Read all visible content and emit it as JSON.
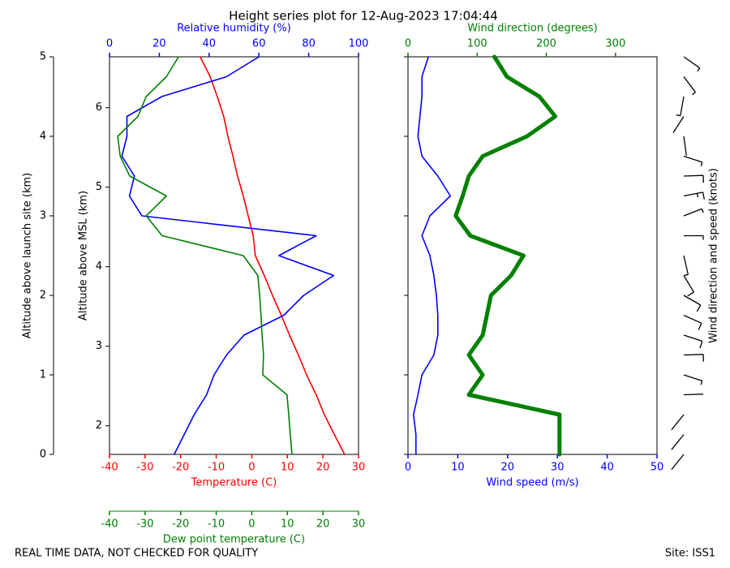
{
  "title": "Height series plot for 12-Aug-2023 17:04:44",
  "footer_left": "REAL TIME DATA, NOT CHECKED FOR QUALITY",
  "footer_right": "Site: ISS1",
  "chart_data": [
    {
      "type": "line",
      "ylabel": "Altitude above launch site (km)",
      "ylim": [
        0,
        5
      ],
      "yticks": [
        0,
        1,
        2,
        3,
        4,
        5
      ],
      "y2label": "Altitude above MSL (km)",
      "y2lim": [
        1.64,
        6.64
      ],
      "y2ticks": [
        2,
        3,
        4,
        5,
        6
      ],
      "y": [
        0,
        0.25,
        0.5,
        0.75,
        1,
        1.25,
        1.5,
        1.75,
        2,
        2.25,
        2.5,
        2.75,
        3,
        3.25,
        3.5,
        3.75,
        4,
        4.25,
        4.5,
        4.75,
        5
      ],
      "x_axes": [
        {
          "label": "Temperature (C)",
          "position": "bottom",
          "color": "#ff0000",
          "xlim": [
            -40,
            30
          ],
          "xticks": [
            -40,
            -30,
            -20,
            -10,
            0,
            10,
            20,
            30
          ]
        },
        {
          "label": "Relative humidity (%)",
          "position": "top",
          "color": "#0000ff",
          "xlim": [
            0,
            100
          ],
          "xticks": [
            0,
            20,
            40,
            60,
            80,
            100
          ]
        },
        {
          "label": "Dew point temperature (C)",
          "position": "bottom2",
          "color": "#008000",
          "xlim": [
            -40,
            30
          ],
          "xticks": [
            -40,
            -30,
            -20,
            -10,
            0,
            10,
            20,
            30
          ]
        }
      ],
      "series": [
        {
          "axis": 0,
          "color": "#ff0000",
          "values": [
            26.1,
            23.2,
            20.4,
            18.1,
            15.4,
            13.1,
            10.6,
            8.3,
            5.8,
            3.5,
            1.0,
            0.4,
            -1.0,
            -2.4,
            -4.0,
            -5.3,
            -6.7,
            -7.9,
            -9.7,
            -11.7,
            -14.5
          ]
        },
        {
          "axis": 1,
          "color": "#0000ff",
          "values": [
            26,
            30,
            34,
            39,
            42,
            47,
            54,
            70,
            78,
            90,
            68,
            83,
            13,
            8,
            10,
            5,
            7,
            7,
            21,
            47,
            60
          ]
        },
        {
          "axis": 2,
          "color": "#008000",
          "values": [
            11.3,
            10.8,
            10.4,
            9.9,
            3.1,
            3.3,
            2.9,
            2.6,
            2.2,
            1.7,
            -2.4,
            -25.2,
            -29.7,
            -24.0,
            -34.3,
            -37.0,
            -37.7,
            -32.0,
            -29.7,
            -24.0,
            -20.6
          ]
        }
      ]
    },
    {
      "type": "line",
      "ylim": [
        0,
        5
      ],
      "yticks": [
        0,
        1,
        2,
        3,
        4,
        5
      ],
      "y2label": "Wind direction and speed (knots)",
      "barbs": true,
      "y": [
        0,
        0.25,
        0.5,
        0.75,
        1,
        1.25,
        1.5,
        1.75,
        2,
        2.25,
        2.5,
        2.75,
        3,
        3.25,
        3.5,
        3.75,
        4,
        4.25,
        4.5,
        4.75,
        5
      ],
      "x_axes": [
        {
          "label": "Wind speed (m/s)",
          "position": "bottom",
          "color": "#0000ff",
          "xlim": [
            0,
            50
          ],
          "xticks": [
            0,
            10,
            20,
            30,
            40,
            50
          ]
        },
        {
          "label": "Wind direction (degrees)",
          "position": "top",
          "color": "#008000",
          "xlim": [
            0,
            360
          ],
          "xticks": [
            0,
            100,
            200,
            300
          ]
        }
      ],
      "series": [
        {
          "axis": 0,
          "color": "#0000ff",
          "values": [
            1.6,
            1.6,
            1.1,
            2.0,
            2.8,
            5.2,
            6.0,
            6.0,
            5.7,
            5.2,
            4.4,
            2.8,
            4.4,
            8.5,
            6.0,
            2.8,
            2.0,
            2.4,
            2.8,
            2.8,
            4.1
          ]
        },
        {
          "axis": 1,
          "color": "#008000",
          "marker": true,
          "values": [
            219,
            219,
            219,
            88,
            108,
            88,
            108,
            114,
            120,
            149,
            167,
            90,
            69,
            79,
            88,
            108,
            172,
            213,
            190,
            143,
            125
          ]
        }
      ]
    }
  ]
}
